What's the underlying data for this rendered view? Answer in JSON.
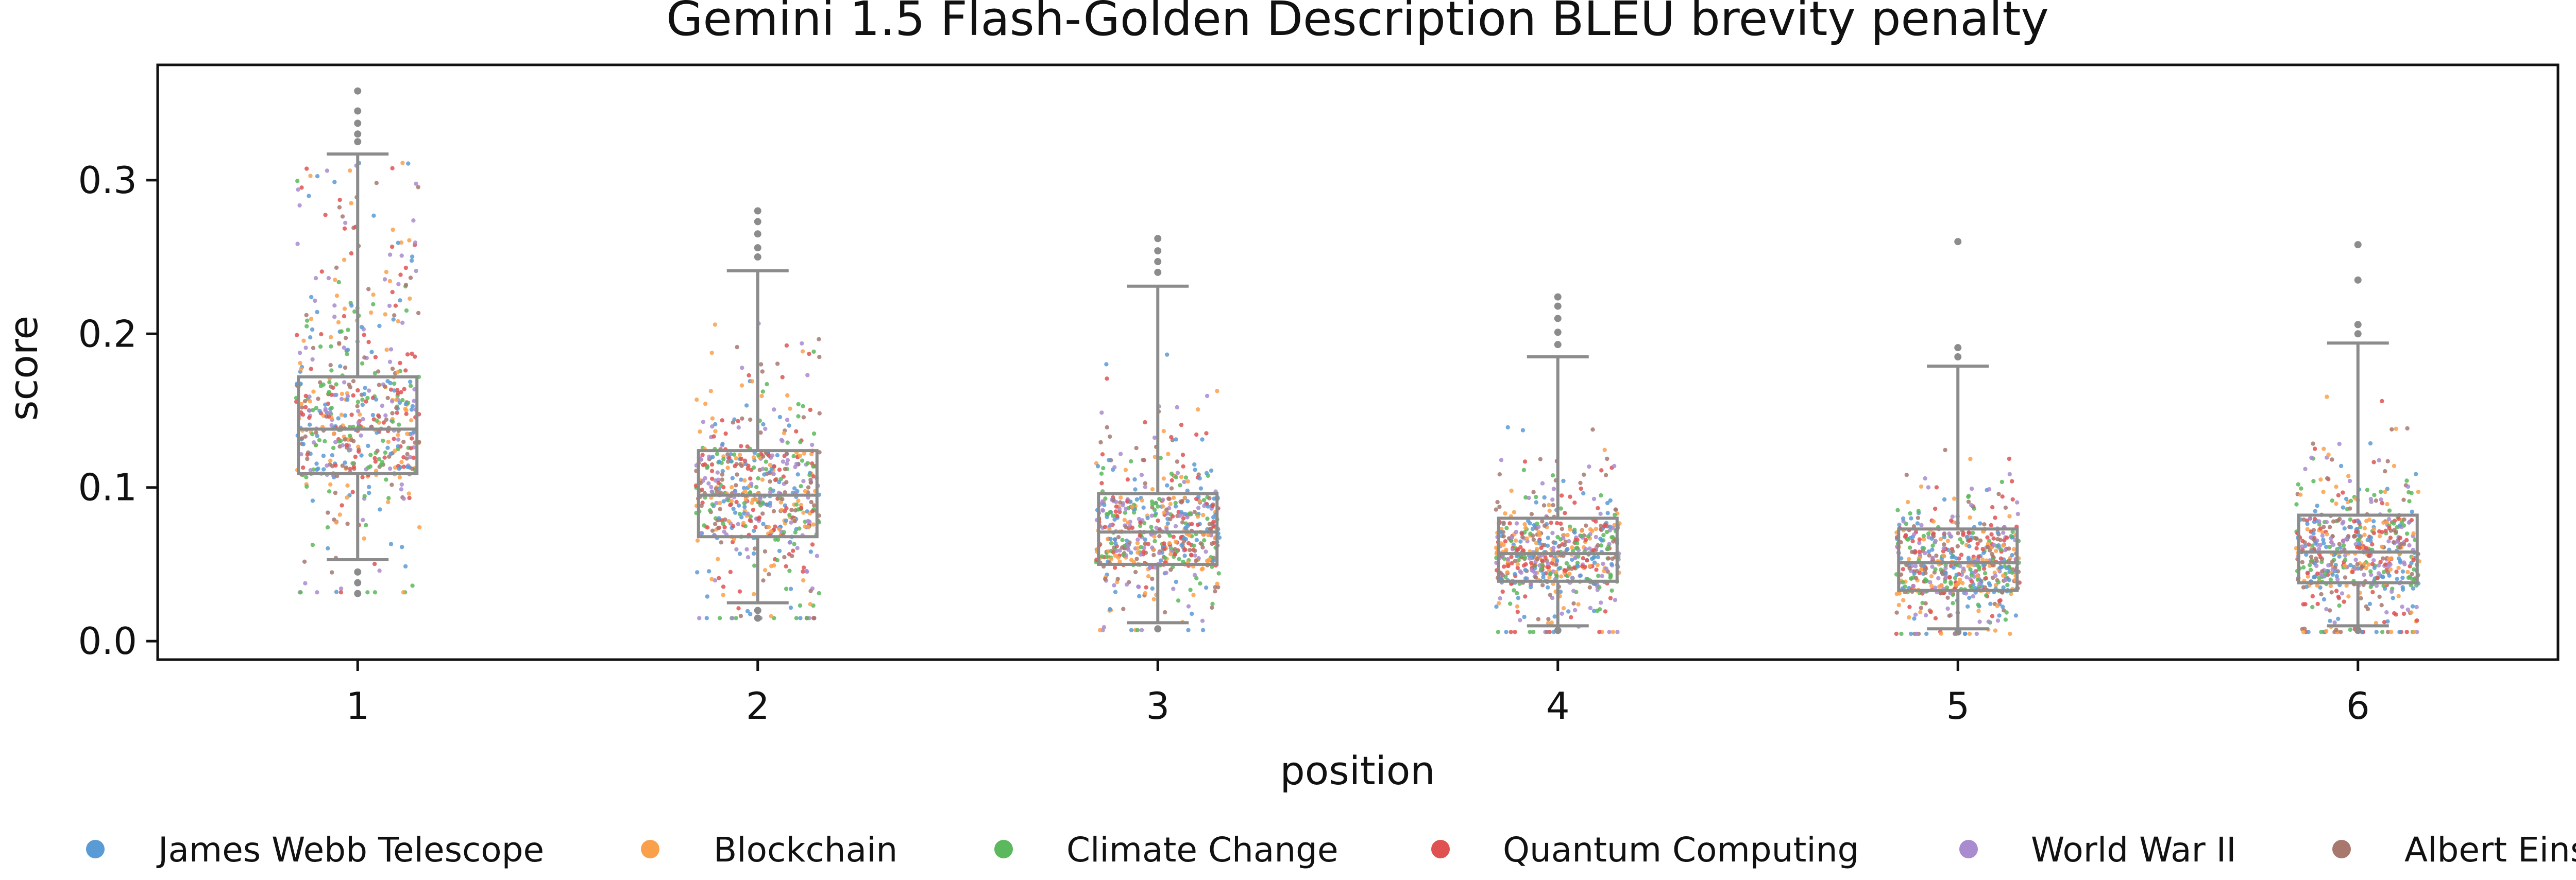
{
  "chart_data": {
    "type": "box-strip",
    "title": "Gemini 1.5 Flash-Golden Description BLEU brevity penalty",
    "xlabel": "position",
    "ylabel": "score",
    "categories": [
      "1",
      "2",
      "3",
      "4",
      "5",
      "6"
    ],
    "ylim": [
      -0.012,
      0.375
    ],
    "yticks": [
      0.0,
      0.1,
      0.2,
      0.3
    ],
    "ytick_labels": [
      "0.0",
      "0.1",
      "0.2",
      "0.3"
    ],
    "grid": false,
    "legend_position": "bottom",
    "box_color": "#8c8c8c",
    "boxes": [
      {
        "position": "1",
        "whisker_low": 0.053,
        "q1": 0.109,
        "median": 0.138,
        "q3": 0.172,
        "whisker_high": 0.317,
        "outliers": [
          0.045,
          0.038,
          0.031,
          0.325,
          0.33,
          0.337,
          0.345,
          0.358
        ]
      },
      {
        "position": "2",
        "whisker_low": 0.025,
        "q1": 0.068,
        "median": 0.095,
        "q3": 0.124,
        "whisker_high": 0.241,
        "outliers": [
          0.02,
          0.015,
          0.25,
          0.256,
          0.265,
          0.273,
          0.28
        ]
      },
      {
        "position": "3",
        "whisker_low": 0.012,
        "q1": 0.05,
        "median": 0.071,
        "q3": 0.096,
        "whisker_high": 0.231,
        "outliers": [
          0.008,
          0.24,
          0.247,
          0.254,
          0.262
        ]
      },
      {
        "position": "4",
        "whisker_low": 0.01,
        "q1": 0.039,
        "median": 0.057,
        "q3": 0.08,
        "whisker_high": 0.185,
        "outliers": [
          0.007,
          0.193,
          0.201,
          0.21,
          0.218,
          0.224
        ]
      },
      {
        "position": "5",
        "whisker_low": 0.008,
        "q1": 0.033,
        "median": 0.051,
        "q3": 0.073,
        "whisker_high": 0.179,
        "outliers": [
          0.006,
          0.185,
          0.191,
          0.26
        ]
      },
      {
        "position": "6",
        "whisker_low": 0.01,
        "q1": 0.038,
        "median": 0.058,
        "q3": 0.082,
        "whisker_high": 0.194,
        "outliers": [
          0.007,
          0.2,
          0.206,
          0.235,
          0.258
        ]
      }
    ],
    "series": [
      {
        "name": "James Webb Telescope",
        "color": "#5b9bd5"
      },
      {
        "name": "Blockchain",
        "color": "#fba04a"
      },
      {
        "name": "Climate Change",
        "color": "#5cb85c"
      },
      {
        "name": "Quantum Computing",
        "color": "#e05252"
      },
      {
        "name": "World War II",
        "color": "#a98bd0"
      },
      {
        "name": "Albert Einstein",
        "color": "#a8786e"
      }
    ],
    "points_per_position": 560
  }
}
